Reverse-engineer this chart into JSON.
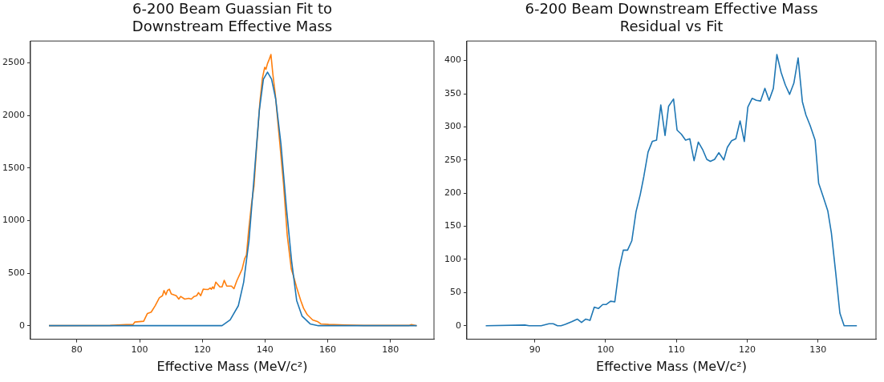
{
  "chart_data": [
    {
      "type": "line",
      "title": "6-200 Beam Guassian Fit to\nDownstream Effective Mass",
      "xlabel": "Effective Mass (MeV/c²)",
      "xlim": [
        65.2,
        193.9
      ],
      "ylim": [
        -129,
        2709
      ],
      "xticks": [
        80,
        100,
        120,
        140,
        160,
        180
      ],
      "yticks": [
        0,
        500,
        1000,
        1500,
        2000,
        2500
      ],
      "grid": false,
      "marker": "none",
      "line_style": "solid",
      "series": [
        {
          "color": "#1f77b4",
          "x": [
            71.1,
            125,
            126.3,
            128.9,
            131.5,
            133.2,
            134.9,
            136.5,
            138.2,
            139.5,
            140.8,
            142.1,
            143.4,
            145.1,
            146.8,
            148.5,
            150.1,
            151.8,
            154.4,
            157,
            188.4
          ],
          "values": [
            0,
            0,
            0,
            55,
            190,
            414,
            810,
            1405,
            2050,
            2346,
            2413,
            2346,
            2160,
            1727,
            1132,
            612,
            240,
            92,
            17,
            0,
            0
          ]
        },
        {
          "color": "#ff7f0e",
          "x": [
            71.1,
            90.6,
            95.7,
            97.9,
            98.5,
            101.3,
            102.5,
            103.7,
            105,
            106.3,
            107.3,
            107.8,
            108.4,
            108.9,
            109.5,
            110.1,
            111.7,
            112.5,
            113.1,
            114.4,
            115.7,
            116.5,
            117.4,
            118.2,
            118.8,
            119.5,
            120.3,
            121.8,
            122.5,
            122.9,
            123.3,
            123.7,
            124.3,
            125.6,
            126.3,
            127,
            127.8,
            129.3,
            130.1,
            131,
            132.7,
            133.5,
            134.1,
            134.8,
            135.7,
            136.5,
            137.4,
            138.4,
            139.2,
            139.9,
            140.3,
            140.8,
            141.4,
            141.9,
            142.5,
            143.3,
            144.6,
            145.9,
            147.1,
            148.4,
            149.3,
            150.1,
            151.4,
            152.3,
            153.5,
            155.2,
            156.9,
            157.8,
            160.3,
            165.4,
            171.4,
            185.9,
            186.7,
            188.4
          ],
          "values": [
            0,
            2,
            10,
            10,
            35,
            42,
            116,
            129,
            191,
            265,
            285,
            335,
            295,
            335,
            347,
            302,
            285,
            253,
            278,
            253,
            260,
            253,
            278,
            285,
            315,
            285,
            347,
            344,
            359,
            347,
            369,
            352,
            414,
            369,
            369,
            431,
            377,
            377,
            352,
            426,
            538,
            637,
            674,
            909,
            1157,
            1331,
            1727,
            2136,
            2359,
            2458,
            2440,
            2494,
            2538,
            2580,
            2396,
            2198,
            1777,
            1355,
            860,
            538,
            451,
            364,
            240,
            166,
            104,
            55,
            37,
            17,
            12,
            7,
            2,
            2,
            10,
            0
          ]
        }
      ]
    },
    {
      "type": "line",
      "title": "6-200 Beam Downstream Effective Mass\nResidual vs Fit",
      "xlabel": "Effective Mass (MeV/c²)",
      "xlim": [
        80.4,
        138.2
      ],
      "ylim": [
        -20.4,
        429.5
      ],
      "xticks": [
        90,
        100,
        110,
        120,
        130
      ],
      "yticks": [
        0,
        50,
        100,
        150,
        200,
        250,
        300,
        350,
        400
      ],
      "grid": false,
      "marker": "none",
      "line_style": "solid",
      "series": [
        {
          "color": "#1f77b4",
          "x": [
            83.07,
            88.6,
            89.2,
            90.9,
            92,
            92.6,
            93.2,
            93.7,
            94.3,
            95.2,
            96,
            96.6,
            97.2,
            97.8,
            98.4,
            99,
            99.6,
            100.1,
            100.7,
            101.3,
            101.9,
            102.5,
            103.1,
            103.7,
            104.3,
            104.9,
            105.4,
            106,
            106.6,
            107.2,
            107.8,
            108.4,
            108.9,
            109.6,
            110.1,
            110.7,
            111.3,
            111.9,
            112.5,
            113.1,
            113.7,
            114.3,
            114.8,
            115.4,
            116,
            116.7,
            117.2,
            117.8,
            118.4,
            119,
            119.6,
            120.1,
            120.7,
            121.3,
            121.9,
            122.5,
            123.1,
            123.7,
            124.2,
            124.8,
            125.4,
            126,
            126.6,
            127.2,
            127.8,
            128.3,
            128.9,
            129.6,
            130.1,
            130.7,
            131.4,
            131.9,
            132.5,
            133.1,
            133.7,
            135.5
          ],
          "values": [
            0,
            1,
            0,
            0,
            3,
            3,
            0,
            0,
            2,
            6,
            10,
            5,
            10,
            8,
            28,
            26,
            32,
            32,
            37,
            36,
            85,
            114,
            114,
            128,
            172,
            198,
            225,
            262,
            278,
            280,
            333,
            287,
            331,
            342,
            295,
            289,
            280,
            282,
            249,
            277,
            266,
            251,
            248,
            251,
            261,
            250,
            269,
            279,
            282,
            309,
            278,
            330,
            343,
            340,
            339,
            358,
            340,
            358,
            409,
            382,
            363,
            349,
            366,
            404,
            338,
            318,
            302,
            280,
            215,
            196,
            173,
            140,
            81,
            19,
            0,
            0
          ]
        }
      ]
    }
  ]
}
